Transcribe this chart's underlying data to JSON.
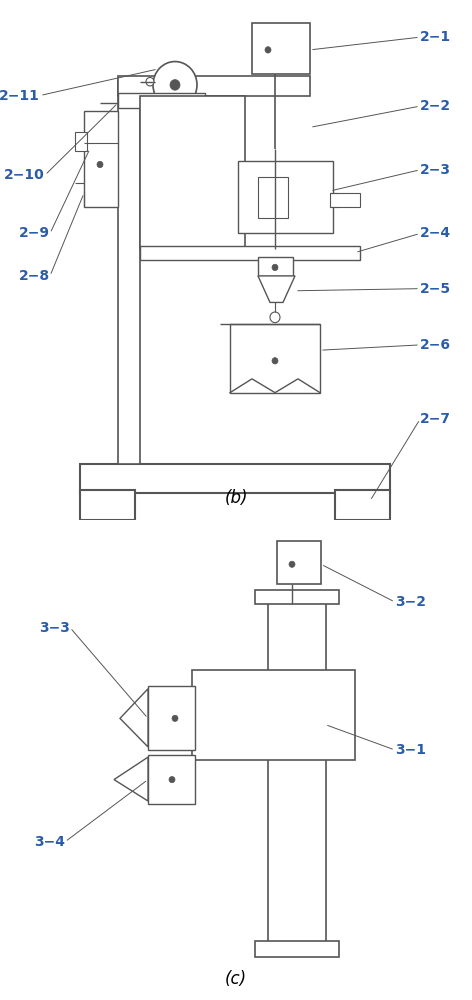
{
  "bg_color": "#ffffff",
  "line_color": "#555555",
  "label_color": "#2a5ca8",
  "label_fontsize": 10,
  "caption_fontsize": 12,
  "fig_width": 4.72,
  "fig_height": 10.0
}
